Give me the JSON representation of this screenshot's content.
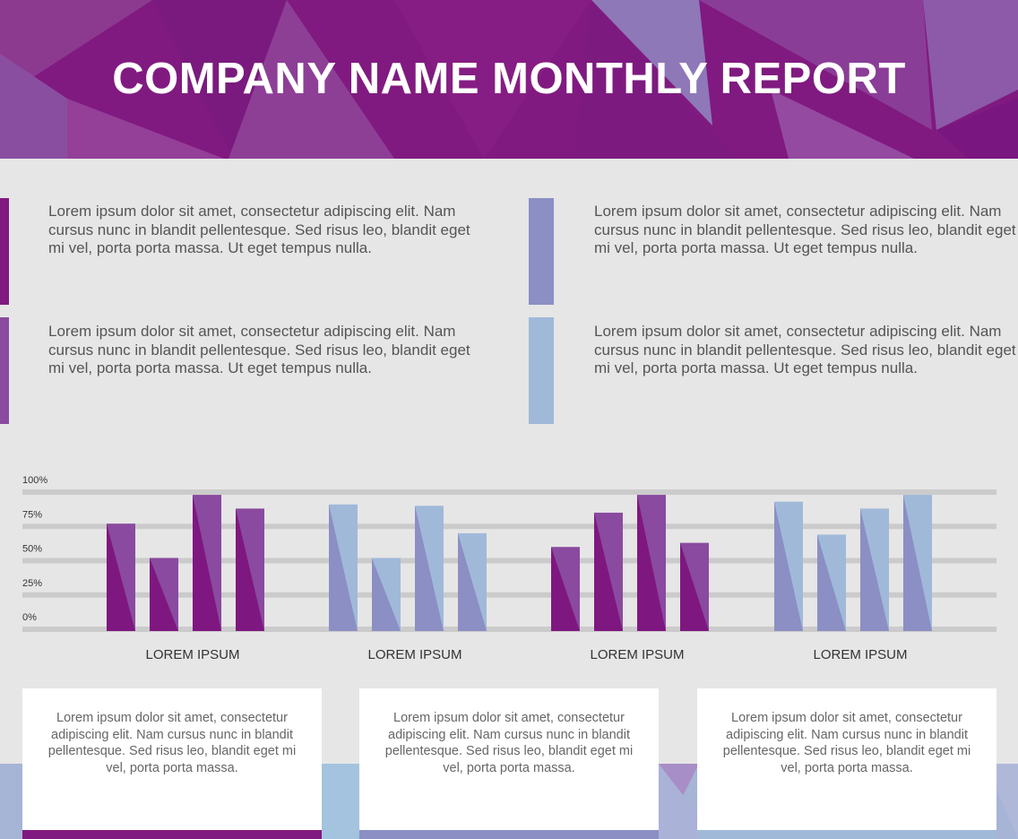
{
  "header": {
    "title": "COMPANY NAME MONTHLY REPORT"
  },
  "colors": {
    "purple_dark": "#7f1780",
    "purple_light": "#8a4a9f",
    "blue_dark": "#8b8fc4",
    "blue_light": "#a0b9d9"
  },
  "paragraphs": [
    {
      "text": "Lorem ipsum dolor sit amet, consectetur adipiscing elit. Nam cursus nunc in blandit pellentesque. Sed risus leo, blandit eget mi vel, porta porta massa. Ut eget tempus nulla.",
      "accent": "#801a80"
    },
    {
      "text": "Lorem ipsum dolor sit amet, consectetur adipiscing elit. Nam cursus nunc in blandit pellentesque. Sed risus leo, blandit eget mi vel, porta porta massa. Ut eget tempus nulla.",
      "accent": "#8b8fc4"
    },
    {
      "text": "Lorem ipsum dolor sit amet, consectetur adipiscing elit. Nam cursus nunc in blandit pellentesque. Sed risus leo, blandit eget mi vel, porta porta massa. Ut eget tempus nulla.",
      "accent": "#8a4a9f"
    },
    {
      "text": "Lorem ipsum dolor sit amet, consectetur adipiscing elit. Nam cursus nunc in blandit pellentesque. Sed risus leo, blandit eget mi vel, porta porta massa. Ut eget tempus nulla.",
      "accent": "#a0b9d9"
    }
  ],
  "chart_data": {
    "type": "bar",
    "categories": [
      "LOREM IPSUM",
      "LOREM IPSUM",
      "LOREM IPSUM",
      "LOREM IPSUM"
    ],
    "yticks": [
      "0%",
      "25%",
      "50%",
      "75%",
      "100%"
    ],
    "ylim": [
      0,
      100
    ],
    "grid": true,
    "groups": [
      {
        "values": [
          77,
          52,
          98,
          88
        ],
        "palette": "purple"
      },
      {
        "values": [
          91,
          52,
          90,
          70
        ],
        "palette": "blue"
      },
      {
        "values": [
          60,
          85,
          98,
          63
        ],
        "palette": "purple"
      },
      {
        "values": [
          93,
          69,
          88,
          98
        ],
        "palette": "blue"
      }
    ]
  },
  "cards": [
    {
      "text": "Lorem ipsum dolor sit amet, consectetur adipiscing elit. Nam cursus nunc in blandit pellentesque. Sed risus leo, blandit eget mi vel, porta porta massa.",
      "strip": "#801a80"
    },
    {
      "text": "Lorem ipsum dolor sit amet, consectetur adipiscing elit. Nam cursus nunc in blandit pellentesque. Sed risus leo, blandit eget mi vel, porta porta massa.",
      "strip": "#8b8fc4"
    },
    {
      "text": "Lorem ipsum dolor sit amet, consectetur adipiscing elit. Nam cursus nunc in blandit pellentesque. Sed risus leo, blandit eget mi vel, porta porta massa.",
      "strip": "#a0b9d9"
    }
  ]
}
